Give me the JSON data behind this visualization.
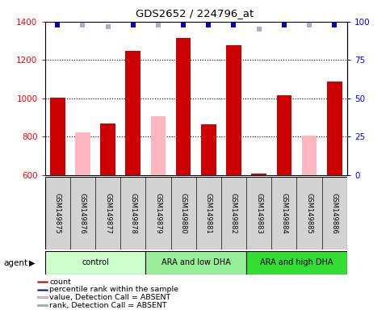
{
  "title": "GDS2652 / 224796_at",
  "samples": [
    "GSM149875",
    "GSM149876",
    "GSM149877",
    "GSM149878",
    "GSM149879",
    "GSM149880",
    "GSM149881",
    "GSM149882",
    "GSM149883",
    "GSM149884",
    "GSM149885",
    "GSM149886"
  ],
  "counts": [
    1005,
    null,
    870,
    1248,
    null,
    1315,
    865,
    1278,
    608,
    1015,
    null,
    1090
  ],
  "absent_values": [
    null,
    822,
    null,
    null,
    905,
    null,
    null,
    null,
    null,
    null,
    808,
    null
  ],
  "percentile_ranks": [
    98,
    null,
    null,
    98,
    null,
    98,
    98,
    98,
    null,
    98,
    null,
    98
  ],
  "absent_ranks": [
    null,
    98,
    97,
    null,
    98,
    null,
    null,
    null,
    95,
    null,
    98,
    null
  ],
  "groups": [
    {
      "name": "control",
      "start": 0,
      "end": 3,
      "color": "#ccffcc"
    },
    {
      "name": "ARA and low DHA",
      "start": 4,
      "end": 7,
      "color": "#99ee99"
    },
    {
      "name": "ARA and high DHA",
      "start": 8,
      "end": 11,
      "color": "#33dd33"
    }
  ],
  "ylim_left": [
    600,
    1400
  ],
  "ylim_right": [
    0,
    100
  ],
  "yticks_left": [
    600,
    800,
    1000,
    1200,
    1400
  ],
  "yticks_right": [
    0,
    25,
    50,
    75,
    100
  ],
  "bar_color_count": "#cc0000",
  "bar_color_absent": "#ffb6c1",
  "marker_color_rank": "#0000cc",
  "marker_color_absent_rank": "#aaaadd",
  "sample_bg": "#d3d3d3",
  "plot_bg": "#ffffff",
  "legend_items": [
    {
      "label": "count",
      "color": "#cc0000"
    },
    {
      "label": "percentile rank within the sample",
      "color": "#0000cc"
    },
    {
      "label": "value, Detection Call = ABSENT",
      "color": "#ffb6c1"
    },
    {
      "label": "rank, Detection Call = ABSENT",
      "color": "#aaaadd"
    }
  ]
}
